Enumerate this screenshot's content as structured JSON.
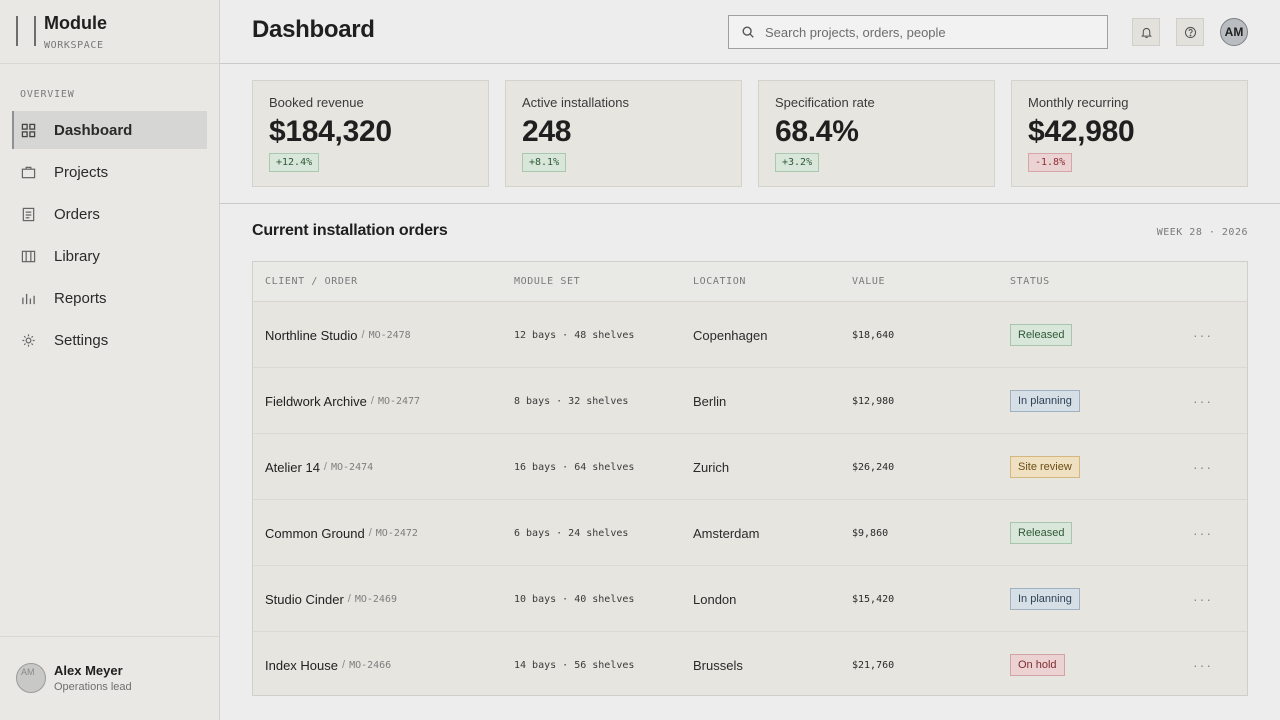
{
  "brand": {
    "name": "Module",
    "sub": "WORKSPACE"
  },
  "sidebar": {
    "section": "OVERVIEW",
    "items": [
      {
        "label": "Dashboard",
        "icon": "grid-icon",
        "active": true
      },
      {
        "label": "Projects",
        "icon": "briefcase-icon"
      },
      {
        "label": "Orders",
        "icon": "document-list-icon"
      },
      {
        "label": "Library",
        "icon": "library-icon"
      },
      {
        "label": "Reports",
        "icon": "bar-chart-icon"
      },
      {
        "label": "Settings",
        "icon": "gear-icon"
      }
    ],
    "user": {
      "initials": "AM",
      "name": "Alex Meyer",
      "role": "Operations lead"
    }
  },
  "header": {
    "title": "Dashboard",
    "search_placeholder": "Search projects, orders, people",
    "avatar_initials": "AM"
  },
  "kpis": [
    {
      "label": "Booked revenue",
      "value": "$184,320",
      "delta": "+12.4%"
    },
    {
      "label": "Active installations",
      "value": "248",
      "delta": "+8.1%"
    },
    {
      "label": "Specification rate",
      "value": "68.4%",
      "delta": "+3.2%"
    },
    {
      "label": "Monthly recurring",
      "value": "$42,980",
      "delta": "-1.8%"
    }
  ],
  "orders": {
    "title": "Current installation orders",
    "week": "WEEK 28 · 2026",
    "columns": [
      "CLIENT / ORDER",
      "MODULE SET",
      "LOCATION",
      "VALUE",
      "STATUS"
    ],
    "rows": [
      {
        "client": "Northline Studio",
        "code": "MO-2478",
        "set": "12 bays · 48 shelves",
        "location": "Copenhagen",
        "value": "$18,640",
        "status": "Released"
      },
      {
        "client": "Fieldwork Archive",
        "code": "MO-2477",
        "set": "8 bays · 32 shelves",
        "location": "Berlin",
        "value": "$12,980",
        "status": "In planning"
      },
      {
        "client": "Atelier 14",
        "code": "MO-2474",
        "set": "16 bays · 64 shelves",
        "location": "Zurich",
        "value": "$26,240",
        "status": "Site review"
      },
      {
        "client": "Common Ground",
        "code": "MO-2472",
        "set": "6 bays · 24 shelves",
        "location": "Amsterdam",
        "value": "$9,860",
        "status": "Released"
      },
      {
        "client": "Studio Cinder",
        "code": "MO-2469",
        "set": "10 bays · 40 shelves",
        "location": "London",
        "value": "$15,420",
        "status": "In planning"
      },
      {
        "client": "Index House",
        "code": "MO-2466",
        "set": "14 bays · 56 shelves",
        "location": "Brussels",
        "value": "$21,760",
        "status": "On hold"
      }
    ],
    "more_glyph": "···"
  }
}
